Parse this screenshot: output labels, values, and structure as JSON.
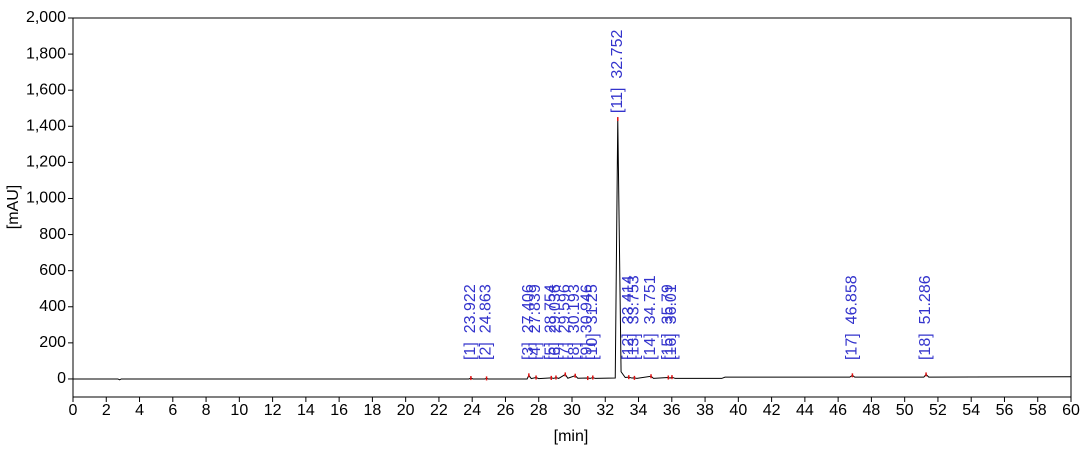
{
  "chart_data": {
    "type": "line",
    "xlabel": "[min]",
    "ylabel": "[mAU]",
    "xlim": [
      0,
      60
    ],
    "xticks": [
      0,
      2,
      4,
      6,
      8,
      10,
      12,
      14,
      16,
      18,
      20,
      22,
      24,
      26,
      28,
      30,
      32,
      34,
      36,
      38,
      40,
      42,
      44,
      46,
      48,
      50,
      52,
      54,
      56,
      58,
      60
    ],
    "ylim": [
      -100,
      2000
    ],
    "yticks": [
      0,
      200,
      400,
      600,
      800,
      {
        "value": 1000,
        "label": "1,000"
      },
      {
        "value": 1200,
        "label": "1,200"
      },
      {
        "value": 1400,
        "label": "1,400"
      },
      {
        "value": 1600,
        "label": "1,600"
      },
      {
        "value": 1800,
        "label": "1,800"
      },
      {
        "value": 2000,
        "label": "2,000"
      }
    ],
    "series": [
      {
        "color": "#000000",
        "x": [
          0,
          2.7,
          2.8,
          2.9,
          23.8,
          23.922,
          24.05,
          24.75,
          24.863,
          24.97,
          27.3,
          27.406,
          27.55,
          27.839,
          28,
          28.754,
          28.9,
          29.036,
          29.2,
          29.596,
          29.75,
          30.193,
          30.35,
          30.946,
          31.1,
          31.25,
          31.4,
          32.6,
          32.752,
          32.95,
          33.2,
          33.414,
          33.6,
          33.753,
          33.9,
          34.751,
          34.9,
          35.79,
          35.9,
          36.01,
          36.2,
          39,
          39.2,
          46.7,
          46.858,
          47,
          51.15,
          51.286,
          51.45,
          60
        ],
        "values": [
          0,
          0,
          -5,
          0,
          0,
          5,
          0,
          0,
          3,
          0,
          0,
          20,
          2,
          8,
          2,
          6,
          3,
          8,
          3,
          25,
          4,
          18,
          4,
          5,
          3,
          8,
          3,
          5,
          1440,
          40,
          8,
          10,
          5,
          6,
          3,
          15,
          3,
          8,
          5,
          10,
          3,
          3,
          10,
          10,
          20,
          10,
          10,
          25,
          10,
          12
        ]
      }
    ],
    "peaks": {
      "color": "#3333cc",
      "marker_color": "#e01010",
      "ids": [
        "[1]",
        "[2]",
        "[3]",
        "[4]",
        "[5]",
        "[6]",
        "[7]",
        "[8]",
        "[9]",
        "[10]",
        "[11]",
        "[12]",
        "[13]",
        "[14]",
        "[15]",
        "[16]",
        "[17]",
        "[18]"
      ],
      "times": [
        23.922,
        24.863,
        27.406,
        27.839,
        28.754,
        29.036,
        29.596,
        30.193,
        30.946,
        31.25,
        32.752,
        33.414,
        33.753,
        34.751,
        35.79,
        36.01,
        46.858,
        51.286
      ],
      "heights": [
        5,
        3,
        20,
        8,
        6,
        8,
        25,
        18,
        5,
        8,
        1440,
        10,
        6,
        15,
        8,
        10,
        20,
        25
      ]
    }
  }
}
